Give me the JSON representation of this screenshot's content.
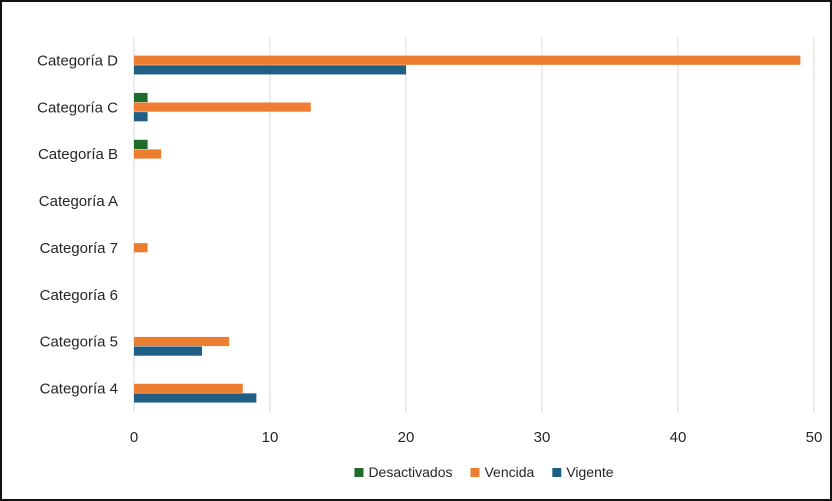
{
  "chart_data": {
    "type": "bar",
    "orientation": "horizontal",
    "title": "",
    "xlabel": "",
    "ylabel": "",
    "xlim": [
      0,
      50
    ],
    "xticks": [
      0,
      10,
      20,
      30,
      40,
      50
    ],
    "grid": "vertical",
    "legend_position": "bottom",
    "categories": [
      "Categoría D",
      "Categoría C",
      "Categoría B",
      "Categoría A",
      "Categoría 7",
      "Categoría 6",
      "Categoría 5",
      "Categoría 4"
    ],
    "series": [
      {
        "name": "Desactivados",
        "color": "#1e6b2a",
        "values": [
          0,
          1,
          1,
          0,
          0,
          0,
          0,
          0
        ]
      },
      {
        "name": "Vencida",
        "color": "#ed7d31",
        "values": [
          49,
          13,
          2,
          0,
          1,
          0,
          7,
          8
        ]
      },
      {
        "name": "Vigente",
        "color": "#1f5f85",
        "values": [
          20,
          1,
          0,
          0,
          0,
          0,
          5,
          9
        ]
      }
    ]
  }
}
